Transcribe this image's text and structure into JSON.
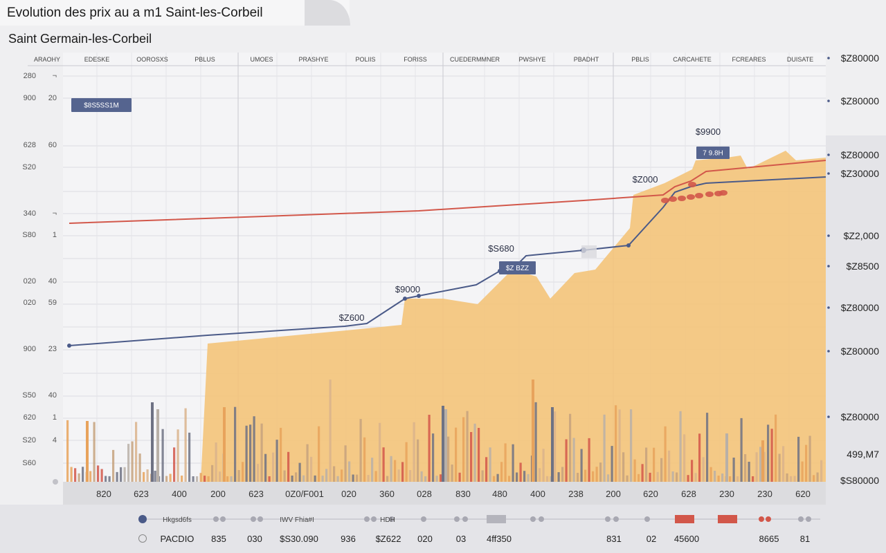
{
  "header": {
    "title": "Evolution des prix au a m1 Saint-les-Corbeil",
    "subtitle": "Saint Germain-les-Corbeil"
  },
  "colors": {
    "background": "#efeff1",
    "plot_bg": "#f4f4f6",
    "area": "#f3c47c",
    "line_blue": "#4a5a88",
    "line_red": "#d2574a",
    "bar_orange": "#e8a35c",
    "bar_grey": "#b8b0a8",
    "bar_slate": "#6e7284",
    "bar_red": "#d2574a",
    "label_box": "#55648f"
  },
  "chart_data": {
    "type": "line",
    "top_labels": [
      "ARAOHY",
      "EDESKE",
      "OOROSXS",
      "PBLUS",
      "UMOES",
      "PRASHYE",
      "POLIIS",
      "FORISS",
      "CUEDERMMNER",
      "PWSHYE",
      "PBADHT",
      "PBLIS",
      "CARCAHETE",
      "FCREARES",
      "DUISATE"
    ],
    "left_ticks_outer": [
      "280",
      "900",
      "628",
      "S20",
      "340",
      "S80",
      "020",
      "020",
      "900",
      "S50",
      "620",
      "S20",
      "S60"
    ],
    "left_ticks_inner": [
      "¬",
      "20",
      "60",
      "",
      "¬",
      "1",
      "40",
      "59",
      "23",
      "40",
      "1",
      "4",
      ""
    ],
    "right_ticks": [
      "$Z80000",
      "$Z80000",
      "$Z80000",
      "$Z30000",
      "$Z2,000",
      "$Z8500",
      "$Z80000",
      "$Z80000",
      "$Z80000",
      "499,M7",
      "$S80000"
    ],
    "x_ticks": [
      "820",
      "623",
      "400",
      "200",
      "623",
      "0Z0/F001",
      "020",
      "360",
      "028",
      "830",
      "480",
      "400",
      "238",
      "200",
      "620",
      "628",
      "230",
      "230",
      "620"
    ],
    "series": [
      {
        "color": "#4a5a88",
        "points": [
          [
            1,
            500
          ],
          [
            2,
            485
          ],
          [
            3,
            472
          ],
          [
            4,
            468
          ],
          [
            5,
            432
          ],
          [
            6,
            428
          ],
          [
            7,
            412
          ],
          [
            8,
            392
          ],
          [
            9,
            385
          ],
          [
            10,
            370
          ],
          [
            11,
            362
          ],
          [
            12,
            355
          ],
          [
            13,
            300
          ],
          [
            14,
            278
          ],
          [
            15,
            270
          ],
          [
            16,
            265
          ],
          [
            17,
            256
          ]
        ]
      },
      {
        "color": "#d2574a",
        "points": [
          [
            1,
            323
          ],
          [
            6,
            305
          ],
          [
            11,
            290
          ],
          [
            13,
            282
          ],
          [
            14,
            270
          ],
          [
            15,
            262
          ],
          [
            16,
            248
          ],
          [
            17,
            232
          ]
        ]
      }
    ],
    "annotations": [
      "$Z600",
      "$9000",
      "$S680",
      "$Z000",
      "$9900"
    ],
    "label_boxes": [
      "$8S5SS1M",
      "$Z BZZ",
      "7 9.8H"
    ],
    "top_left_box": "$8S5SS1M",
    "area_series": "area",
    "bars": "background-bars"
  },
  "legend": {
    "row1_labels": [
      "Hkgsd6fs",
      "IWV Fhia#I",
      "HDH",
      "",
      "",
      "",
      "",
      ""
    ],
    "row2_labels": [
      "PACDIO",
      "835",
      "030",
      "$S30.090",
      "936",
      "$Z622",
      "020",
      "03",
      "4ff350",
      "831",
      "02",
      "45600",
      "8665",
      "81"
    ]
  }
}
